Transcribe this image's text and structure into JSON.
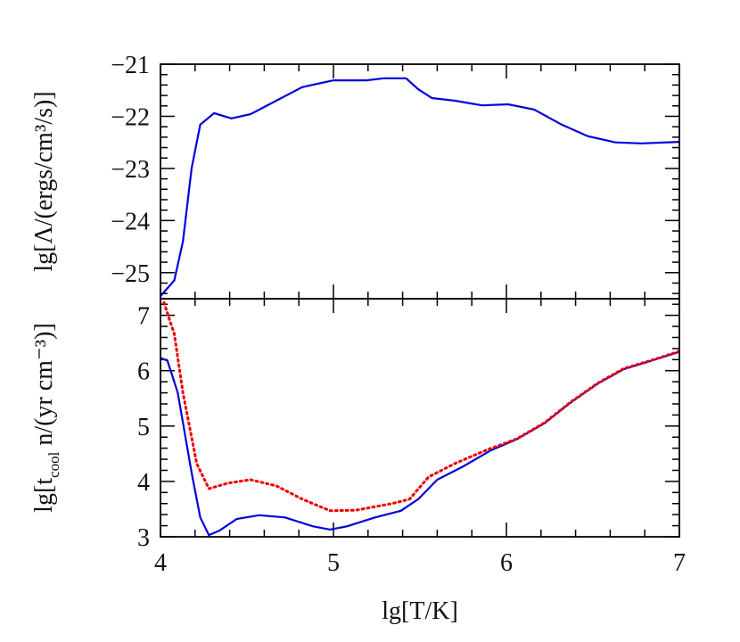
{
  "chart_data": [
    {
      "type": "line",
      "ylabel": "lg[Λ/(ergs/cm³/s)]",
      "xlim": [
        4,
        7
      ],
      "xticks": [
        4,
        5,
        6,
        7
      ],
      "xminorticks": [
        4.2,
        4.4,
        4.6,
        4.8,
        5.2,
        5.4,
        5.6,
        5.8,
        6.2,
        6.4,
        6.6,
        6.8
      ],
      "ylim": [
        -25.5,
        -21
      ],
      "yticks": [
        {
          "value": -21,
          "label": "−21"
        },
        {
          "value": -22,
          "label": "−22"
        },
        {
          "value": -23,
          "label": "−23"
        },
        {
          "value": -24,
          "label": "−24"
        },
        {
          "value": -25,
          "label": "−25"
        }
      ],
      "yminorticks": [
        -21.2,
        -21.4,
        -21.6,
        -21.8,
        -22.2,
        -22.4,
        -22.6,
        -22.8,
        -23.2,
        -23.4,
        -23.6,
        -23.8,
        -24.2,
        -24.4,
        -24.6,
        -24.8,
        -25.2,
        -25.4
      ],
      "series": [
        {
          "color": "#0000dd",
          "dash": false,
          "x": [
            4.0,
            4.08,
            4.13,
            4.18,
            4.23,
            4.31,
            4.41,
            4.52,
            4.67,
            4.82,
            5.0,
            5.19,
            5.29,
            5.42,
            5.49,
            5.57,
            5.7,
            5.86,
            6.01,
            6.16,
            6.32,
            6.47,
            6.63,
            6.78,
            7.0
          ],
          "values": [
            -25.45,
            -25.15,
            -24.4,
            -23.0,
            -22.16,
            -21.94,
            -22.04,
            -21.96,
            -21.7,
            -21.44,
            -21.31,
            -21.31,
            -21.27,
            -21.27,
            -21.48,
            -21.65,
            -21.7,
            -21.79,
            -21.77,
            -21.87,
            -22.16,
            -22.38,
            -22.5,
            -22.52,
            -22.49
          ]
        }
      ]
    },
    {
      "type": "line",
      "xlabel": "lg[T/K]",
      "ylabel": {
        "main": "lg[t",
        "sub": "cool",
        "rest": " n/(yr cm⁻³)]"
      },
      "xlim": [
        4,
        7
      ],
      "xticks": [
        4,
        5,
        6,
        7
      ],
      "xminorticks": [
        4.2,
        4.4,
        4.6,
        4.8,
        5.2,
        5.4,
        5.6,
        5.8,
        6.2,
        6.4,
        6.6,
        6.8
      ],
      "ylim": [
        3,
        7.3
      ],
      "yticks": [
        3,
        4,
        5,
        6,
        7
      ],
      "yminorticks": [
        3.2,
        3.4,
        3.6,
        3.8,
        4.2,
        4.4,
        4.6,
        4.8,
        5.2,
        5.4,
        5.6,
        5.8,
        6.2,
        6.4,
        6.6,
        6.8,
        7.2
      ],
      "series": [
        {
          "color": "#0000dd",
          "dash": false,
          "x": [
            4.0,
            4.04,
            4.1,
            4.18,
            4.23,
            4.28,
            4.34,
            4.44,
            4.57,
            4.72,
            4.88,
            4.98,
            5.08,
            5.24,
            5.39,
            5.49,
            5.6,
            5.75,
            5.91,
            6.06,
            6.22,
            6.37,
            6.53,
            6.68,
            6.84,
            7.0
          ],
          "values": [
            6.23,
            6.18,
            5.6,
            4.16,
            3.35,
            3.03,
            3.11,
            3.32,
            3.39,
            3.35,
            3.19,
            3.13,
            3.19,
            3.35,
            3.47,
            3.68,
            4.03,
            4.27,
            4.56,
            4.76,
            5.05,
            5.42,
            5.77,
            6.03,
            6.18,
            6.34
          ]
        },
        {
          "color": "#ee0000",
          "dash": true,
          "x": [
            4.02,
            4.08,
            4.13,
            4.21,
            4.28,
            4.39,
            4.52,
            4.67,
            4.82,
            4.98,
            5.13,
            5.34,
            5.44,
            5.55,
            5.7,
            5.88,
            6.06,
            6.22,
            6.37,
            6.53,
            6.68,
            6.84,
            7.0
          ],
          "values": [
            7.23,
            6.66,
            5.6,
            4.32,
            3.87,
            3.97,
            4.03,
            3.92,
            3.68,
            3.47,
            3.48,
            3.6,
            3.68,
            4.08,
            4.32,
            4.56,
            4.77,
            5.06,
            5.43,
            5.78,
            6.04,
            6.19,
            6.35
          ]
        }
      ]
    }
  ]
}
